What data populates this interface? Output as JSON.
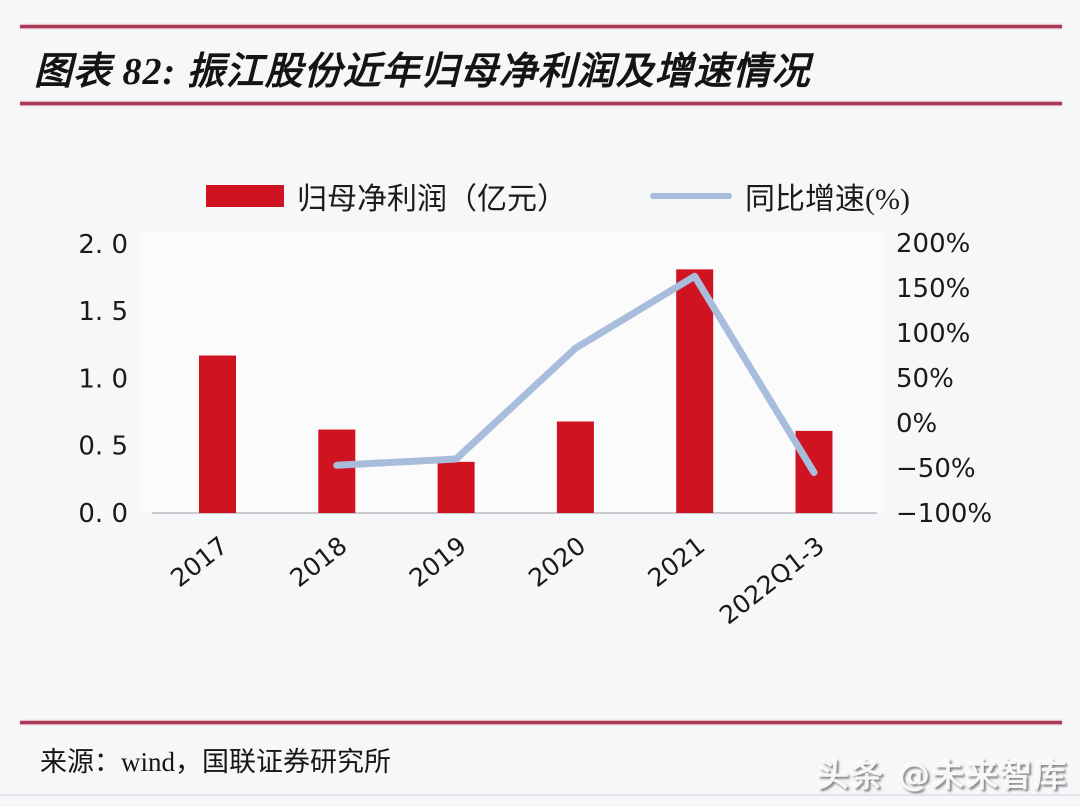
{
  "page": {
    "title": "图表 82:  振江股份近年归母净利润及增速情况",
    "source": "来源：wind，国联证券研究所",
    "watermark": "头条 @未来智库",
    "accent_rule_color": "#a93b58",
    "background_color": "#f6f7f9"
  },
  "legend": {
    "bar_label": "归母净利润（亿元）",
    "line_label": "同比增速(%)",
    "bar_color": "#d01321",
    "line_color": "#a8bcdb"
  },
  "chart_data": {
    "type": "bar",
    "subtype": "bar-line-combo",
    "title": "振江股份近年归母净利润及增速情况",
    "categories": [
      "2017",
      "2018",
      "2019",
      "2020",
      "2021",
      "2022Q1-3"
    ],
    "series": [
      {
        "name": "归母净利润（亿元）",
        "type": "bar",
        "axis": "left",
        "color": "#d01321",
        "values": [
          1.17,
          0.62,
          0.38,
          0.68,
          1.81,
          0.61
        ]
      },
      {
        "name": "同比增速(%)",
        "type": "line",
        "axis": "right",
        "color": "#a8bcdb",
        "values": [
          null,
          -47,
          -40,
          83,
          163,
          -55
        ]
      }
    ],
    "left_axis": {
      "range": [
        0,
        2
      ],
      "tick_values": [
        2.0,
        1.5,
        1.0,
        0.5,
        0.0
      ],
      "tick_labels": [
        "2. 0",
        "1. 5",
        "1. 0",
        "0. 5",
        "0. 0"
      ]
    },
    "right_axis": {
      "range": [
        -100,
        200
      ],
      "tick_values": [
        200,
        150,
        100,
        50,
        0,
        -50,
        -100
      ],
      "tick_labels": [
        "200%",
        "150%",
        "100%",
        "50%",
        "0%",
        "−50%",
        "−100%"
      ]
    },
    "grid": false,
    "legend_position": "top",
    "x_label_rotation_deg": -38
  }
}
